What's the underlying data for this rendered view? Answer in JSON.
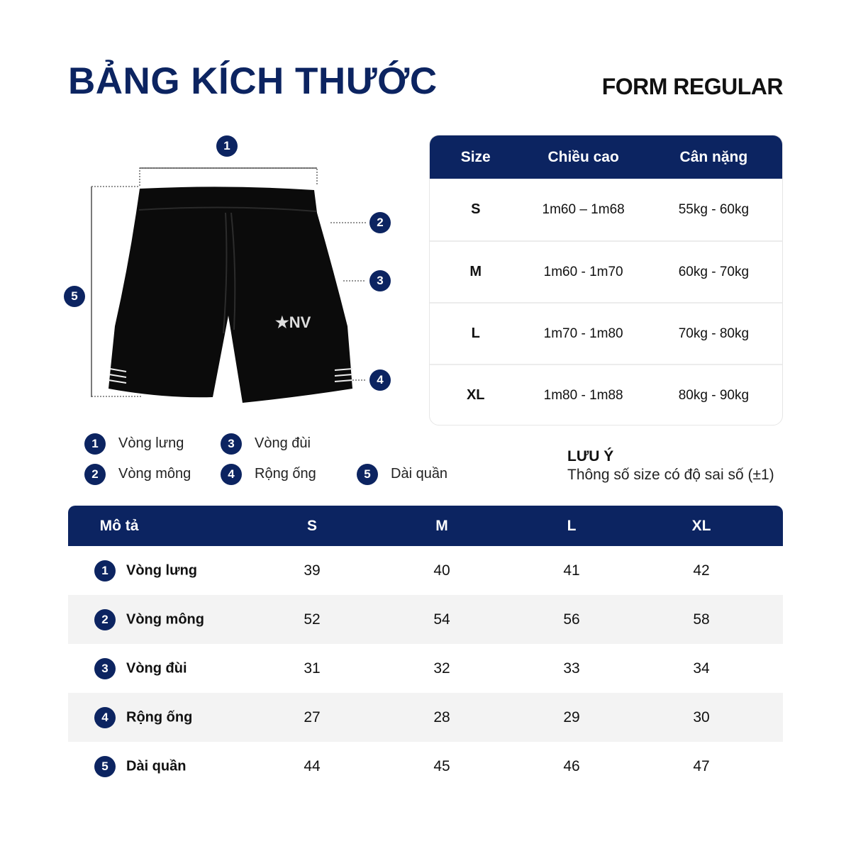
{
  "title": "BẢNG KÍCH THƯỚC",
  "form": "FORM REGULAR",
  "accent_color": "#0c2461",
  "size_table": {
    "headers": [
      "Size",
      "Chiều cao",
      "Cân nặng"
    ],
    "rows": [
      [
        "S",
        "1m60 – 1m68",
        "55kg - 60kg"
      ],
      [
        "M",
        "1m60 - 1m70",
        "60kg - 70kg"
      ],
      [
        "L",
        "1m70 - 1m80",
        "70kg - 80kg"
      ],
      [
        "XL",
        "1m80 - 1m88",
        "80kg - 90kg"
      ]
    ]
  },
  "diagram": {
    "markers": [
      "1",
      "2",
      "3",
      "4",
      "5"
    ]
  },
  "legend": [
    {
      "num": "1",
      "label": "Vòng lưng"
    },
    {
      "num": "2",
      "label": "Vòng mông"
    },
    {
      "num": "3",
      "label": "Vòng đùi"
    },
    {
      "num": "4",
      "label": "Rộng ống"
    },
    {
      "num": "5",
      "label": "Dài quần"
    }
  ],
  "note": {
    "title": "LƯU Ý",
    "text": "Thông số size có độ sai số (±1)"
  },
  "measure_table": {
    "headers": [
      "Mô tả",
      "S",
      "M",
      "L",
      "XL"
    ],
    "rows": [
      {
        "num": "1",
        "label": "Vòng lưng",
        "values": [
          "39",
          "40",
          "41",
          "42"
        ]
      },
      {
        "num": "2",
        "label": "Vòng mông",
        "values": [
          "52",
          "54",
          "56",
          "58"
        ]
      },
      {
        "num": "3",
        "label": "Vòng đùi",
        "values": [
          "31",
          "32",
          "33",
          "34"
        ]
      },
      {
        "num": "4",
        "label": "Rộng ống",
        "values": [
          "27",
          "28",
          "29",
          "30"
        ]
      },
      {
        "num": "5",
        "label": "Dài quần",
        "values": [
          "44",
          "45",
          "46",
          "47"
        ]
      }
    ]
  }
}
